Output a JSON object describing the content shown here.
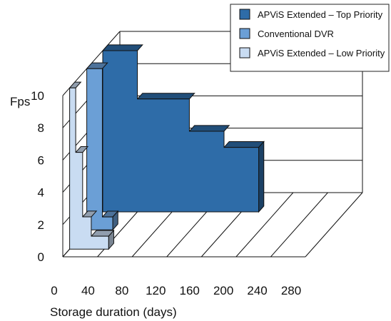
{
  "chart_data": {
    "type": "area",
    "title": "",
    "xlabel": "Storage duration (days)",
    "ylabel": "Fps",
    "ylim": [
      0,
      10
    ],
    "xlim": [
      0,
      280
    ],
    "x_ticks": [
      "0",
      "40",
      "80",
      "120",
      "160",
      "200",
      "240",
      "280"
    ],
    "y_ticks": [
      "0",
      "2",
      "4",
      "6",
      "8",
      "10"
    ],
    "grid": true,
    "legend_position": "top-right",
    "style": "3d-step-ribbons",
    "series": [
      {
        "name": "APViS Extended – Top Priority",
        "color": "#2e6ca8",
        "points": [
          [
            0,
            10
          ],
          [
            40,
            10
          ],
          [
            40,
            7
          ],
          [
            100,
            7
          ],
          [
            100,
            5
          ],
          [
            140,
            5
          ],
          [
            140,
            4
          ],
          [
            180,
            4
          ]
        ]
      },
      {
        "name": "Conventional DVR",
        "color": "#6b9fd6",
        "points": [
          [
            0,
            10
          ],
          [
            18,
            10
          ],
          [
            18,
            0.8
          ],
          [
            30,
            0.8
          ]
        ]
      },
      {
        "name": "APViS Extended – Low Priority",
        "color": "#c9dcf2",
        "points": [
          [
            0,
            10
          ],
          [
            7,
            10
          ],
          [
            7,
            6
          ],
          [
            15,
            6
          ],
          [
            15,
            2
          ],
          [
            25,
            2
          ],
          [
            25,
            0.8
          ],
          [
            45,
            0.8
          ]
        ]
      }
    ]
  }
}
